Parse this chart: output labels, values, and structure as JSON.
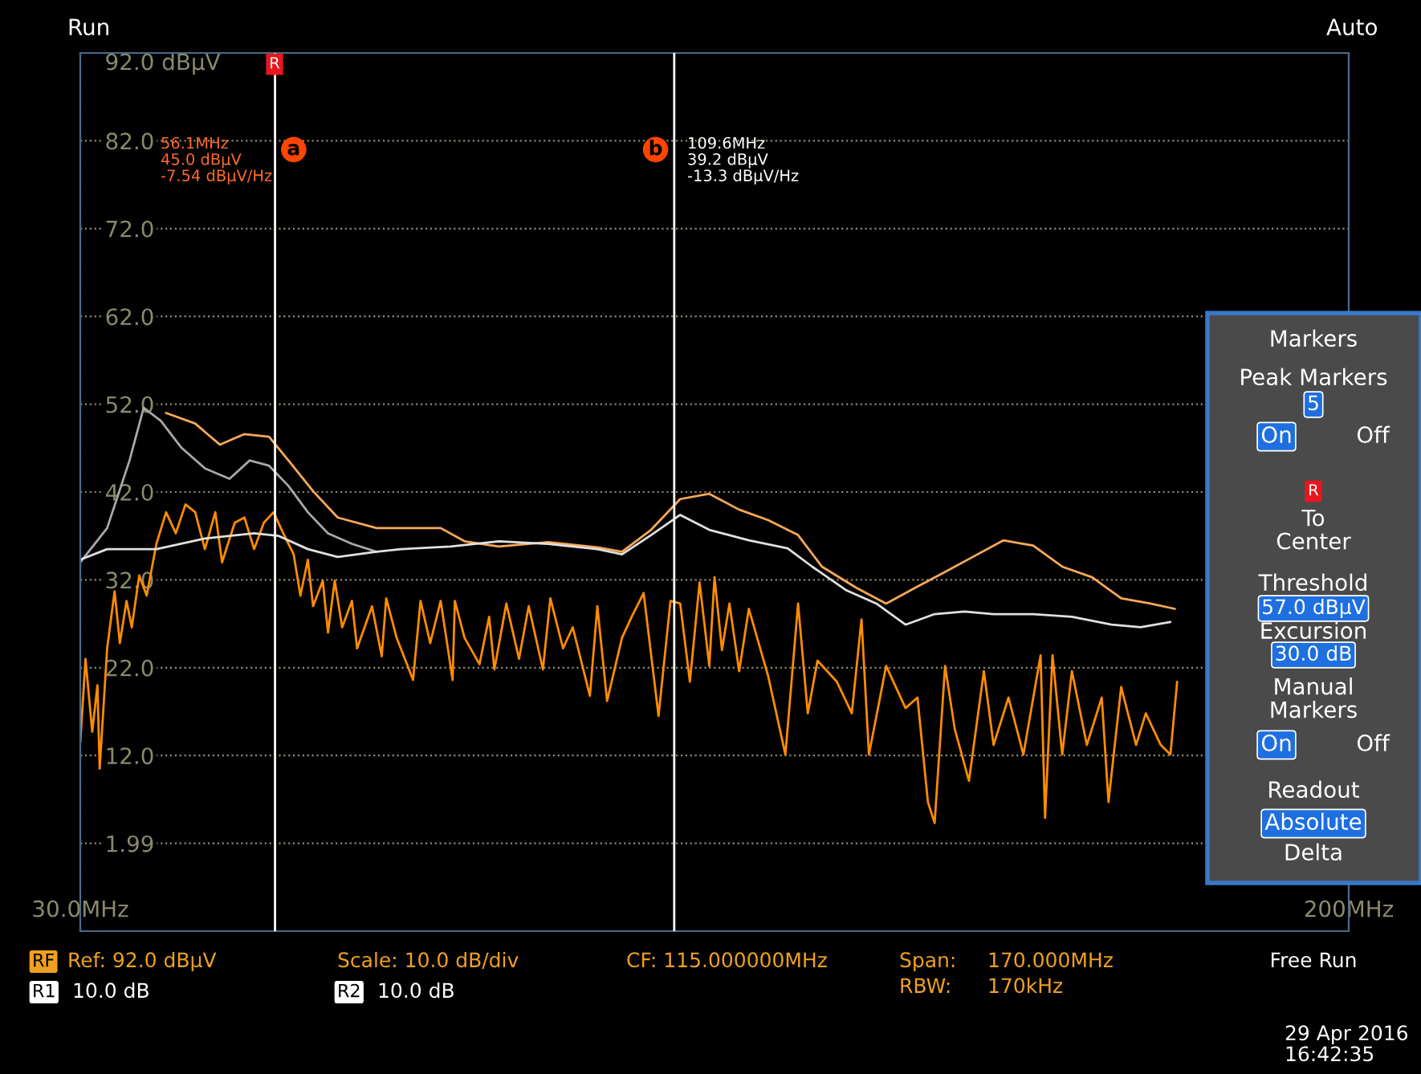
{
  "chart_data": {
    "type": "line",
    "xlim": [
      30,
      200
    ],
    "xticks": [
      {
        "value": 30,
        "label": "30.0MHz"
      },
      {
        "value": 200,
        "label": "200MHz"
      }
    ],
    "ylim": [
      -8,
      92
    ],
    "yticks": [
      {
        "value": 92,
        "label": "92.0 dBµV"
      },
      {
        "value": 82,
        "label": "82.0"
      },
      {
        "value": 72,
        "label": "72.0"
      },
      {
        "value": 62,
        "label": "62.0"
      },
      {
        "value": 52,
        "label": "52.0"
      },
      {
        "value": 42,
        "label": "42.0"
      },
      {
        "value": 32,
        "label": "32.0"
      },
      {
        "value": 22,
        "label": "22.0"
      },
      {
        "value": 12,
        "label": "12.0"
      },
      {
        "value": 1.99,
        "label": "1.99"
      }
    ],
    "grid": true,
    "legend": false,
    "marker": "none",
    "line_style": "solid",
    "series": [
      {
        "color": "#ff8c00",
        "x": [
          30.0,
          30.7,
          31.6,
          32.3,
          32.6,
          33.6,
          34.6,
          35.3,
          36.2,
          36.9,
          37.9,
          38.9,
          40.2,
          41.5,
          42.8,
          44.1,
          45.4,
          46.7,
          48.1,
          49.0,
          50.7,
          52.0,
          53.3,
          54.6,
          55.9,
          57.2,
          58.6,
          59.5,
          60.5,
          61.2,
          62.5,
          63.2,
          64.1,
          65.1,
          66.4,
          67.1,
          69.1,
          70.4,
          71.0,
          72.4,
          74.6,
          75.6,
          76.9,
          78.3,
          79.9,
          80.2,
          81.5,
          83.5,
          84.8,
          85.5,
          87.1,
          88.8,
          90.1,
          92.0,
          93.0,
          94.7,
          96.0,
          98.3,
          99.3,
          100.6,
          102.6,
          103.9,
          105.5,
          107.5,
          109.1,
          110.4,
          111.7,
          113.0,
          114.3,
          115.0,
          116.0,
          117.0,
          118.3,
          119.6,
          122.2,
          124.5,
          126.2,
          127.5,
          128.8,
          131.4,
          133.4,
          134.7,
          135.7,
          138.0,
          140.6,
          142.2,
          143.6,
          144.5,
          145.9,
          147.2,
          149.1,
          151.1,
          152.4,
          154.4,
          156.4,
          158.7,
          159.3,
          160.3,
          161.6,
          162.9,
          164.9,
          166.9,
          167.8,
          169.5,
          171.5,
          172.8,
          174.8,
          176.1,
          177.0
        ],
        "values": [
          13.5,
          23.0,
          14.7,
          20.0,
          10.5,
          24.2,
          30.7,
          24.8,
          29.6,
          26.6,
          32.5,
          30.2,
          36.1,
          39.7,
          37.3,
          40.6,
          39.7,
          35.5,
          39.7,
          34.0,
          38.5,
          39.1,
          35.5,
          38.5,
          39.7,
          37.3,
          34.9,
          30.2,
          34.3,
          29.0,
          31.9,
          26.0,
          31.9,
          26.6,
          29.6,
          24.2,
          29.0,
          23.3,
          29.9,
          25.4,
          20.6,
          29.6,
          24.8,
          29.6,
          20.6,
          29.6,
          25.4,
          22.4,
          27.8,
          21.8,
          29.3,
          23.0,
          29.0,
          21.8,
          29.9,
          24.2,
          26.6,
          18.8,
          29.0,
          18.2,
          25.4,
          27.8,
          30.5,
          16.5,
          29.6,
          29.3,
          20.4,
          31.7,
          22.2,
          32.3,
          24.0,
          29.3,
          21.6,
          28.7,
          21.0,
          12.1,
          29.3,
          16.8,
          22.8,
          20.4,
          16.8,
          27.5,
          12.1,
          22.2,
          17.4,
          18.6,
          6.7,
          4.3,
          22.2,
          15.0,
          9.1,
          21.6,
          13.2,
          18.6,
          12.1,
          23.4,
          4.9,
          23.4,
          12.1,
          21.6,
          13.2,
          18.6,
          6.7,
          19.8,
          13.2,
          16.8,
          13.2,
          12.1,
          20.4
        ]
      },
      {
        "color": "#f9a85a",
        "x": [
          41.5,
          45.4,
          48.7,
          52.0,
          55.3,
          57.9,
          61.2,
          64.5,
          69.7,
          75.0,
          78.3,
          81.5,
          86.1,
          92.7,
          99.3,
          102.6,
          106.5,
          110.4,
          114.3,
          118.3,
          122.2,
          126.2,
          129.4,
          134.0,
          138.0,
          141.9,
          145.9,
          149.8,
          153.7,
          157.7,
          161.6,
          165.6,
          169.5,
          173.4,
          176.7
        ],
        "values": [
          51.0,
          49.8,
          47.4,
          48.6,
          48.3,
          45.6,
          42.1,
          39.1,
          37.9,
          37.9,
          37.9,
          36.4,
          35.8,
          36.3,
          35.7,
          35.2,
          37.7,
          41.2,
          41.8,
          40.0,
          38.8,
          37.1,
          33.5,
          31.1,
          29.3,
          31.1,
          32.9,
          34.7,
          36.5,
          35.9,
          33.5,
          32.3,
          29.9,
          29.3,
          28.7
        ]
      },
      {
        "color": "#a8a8a8",
        "x": [
          30.0,
          33.6,
          36.6,
          38.5,
          40.8,
          43.5,
          46.7,
          50.0,
          52.7,
          55.3,
          57.9,
          60.5,
          63.2,
          66.4,
          69.7
        ],
        "values": [
          34.0,
          37.9,
          45.6,
          51.6,
          50.1,
          47.1,
          44.7,
          43.5,
          45.6,
          45.0,
          42.7,
          39.7,
          37.3,
          36.1,
          35.2
        ]
      },
      {
        "color": "#e0e0e0",
        "x": [
          30.0,
          33.6,
          40.2,
          46.7,
          53.3,
          56.6,
          60.5,
          64.5,
          69.7,
          73.0,
          79.6,
          86.1,
          92.7,
          99.3,
          102.6,
          106.5,
          110.4,
          114.3,
          119.6,
          124.8,
          128.1,
          132.7,
          136.7,
          140.6,
          144.5,
          148.5,
          152.4,
          157.7,
          162.9,
          168.2,
          172.1,
          176.1
        ],
        "values": [
          34.3,
          35.5,
          35.5,
          36.7,
          37.3,
          37.0,
          35.5,
          34.6,
          35.2,
          35.5,
          35.8,
          36.4,
          36.1,
          35.5,
          34.9,
          37.1,
          39.4,
          37.7,
          36.5,
          35.6,
          33.5,
          30.8,
          29.3,
          26.9,
          28.1,
          28.4,
          28.1,
          28.1,
          27.8,
          26.9,
          26.6,
          27.2
        ]
      }
    ],
    "ref_lines": [
      {
        "axis": "x",
        "value": 56.1,
        "label": "a",
        "color": "#ffffff"
      },
      {
        "axis": "x",
        "value": 109.6,
        "label": "b",
        "color": "#ffffff"
      }
    ],
    "annotations": [
      "56.1MHz\n45.0 dBµV\n-7.54 dBµV/Hz",
      "109.6MHz\n39.2 dBµV\n-13.3 dBµV/Hz",
      "R",
      "Run",
      "Auto",
      "Markers",
      "Peak Markers",
      "5",
      "On",
      "Off",
      "R",
      "To\nCenter",
      "Threshold",
      "57.0 dBµV",
      "Excursion",
      "30.0 dB",
      "Manual\nMarkers",
      "On",
      "Off",
      "Readout",
      "Absolute",
      "Delta",
      "RF",
      "Ref: 92.0 dBµV",
      "Scale: 10.0 dB/div",
      "CF: 115.000000MHz",
      "Span:",
      "170.000MHz",
      "RBW:",
      "170kHz",
      "Free Run",
      "R1",
      "10.0 dB",
      "R2",
      "10.0 dB",
      "29 Apr 2016\n16:42:35"
    ]
  }
}
